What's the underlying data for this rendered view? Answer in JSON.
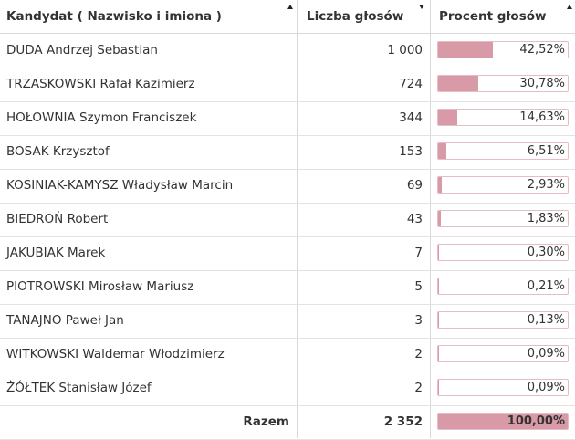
{
  "header": {
    "col_candidate": "Kandydat ( Nazwisko i imiona )",
    "col_votes": "Liczba głosów",
    "col_percent": "Procent głosów"
  },
  "rows": [
    {
      "name": "DUDA Andrzej Sebastian",
      "votes": "1 000",
      "percent": "42,52%",
      "share": 0.4252
    },
    {
      "name": "TRZASKOWSKI Rafał Kazimierz",
      "votes": "724",
      "percent": "30,78%",
      "share": 0.3078
    },
    {
      "name": "HOŁOWNIA Szymon Franciszek",
      "votes": "344",
      "percent": "14,63%",
      "share": 0.1463
    },
    {
      "name": "BOSAK Krzysztof",
      "votes": "153",
      "percent": "6,51%",
      "share": 0.0651
    },
    {
      "name": "KOSINIAK-KAMYSZ Władysław Marcin",
      "votes": "69",
      "percent": "2,93%",
      "share": 0.0293
    },
    {
      "name": "BIEDROŃ Robert",
      "votes": "43",
      "percent": "1,83%",
      "share": 0.0183
    },
    {
      "name": "JAKUBIAK Marek",
      "votes": "7",
      "percent": "0,30%",
      "share": 0.003
    },
    {
      "name": "PIOTROWSKI Mirosław Mariusz",
      "votes": "5",
      "percent": "0,21%",
      "share": 0.0021
    },
    {
      "name": "TANAJNO Paweł Jan",
      "votes": "3",
      "percent": "0,13%",
      "share": 0.0013
    },
    {
      "name": "WITKOWSKI Waldemar Włodzimierz",
      "votes": "2",
      "percent": "0,09%",
      "share": 0.0009
    },
    {
      "name": "ŻÓŁTEK Stanisław Józef",
      "votes": "2",
      "percent": "0,09%",
      "share": 0.0009
    }
  ],
  "total": {
    "label": "Razem",
    "votes": "2 352",
    "percent": "100,00%",
    "share": 1.0
  },
  "colors": {
    "bar_fill": "#d99aa7",
    "bar_border": "#e6bcc5"
  },
  "icons": {
    "sort_asc": "sort-asc-icon",
    "sort_desc": "sort-desc-icon"
  }
}
